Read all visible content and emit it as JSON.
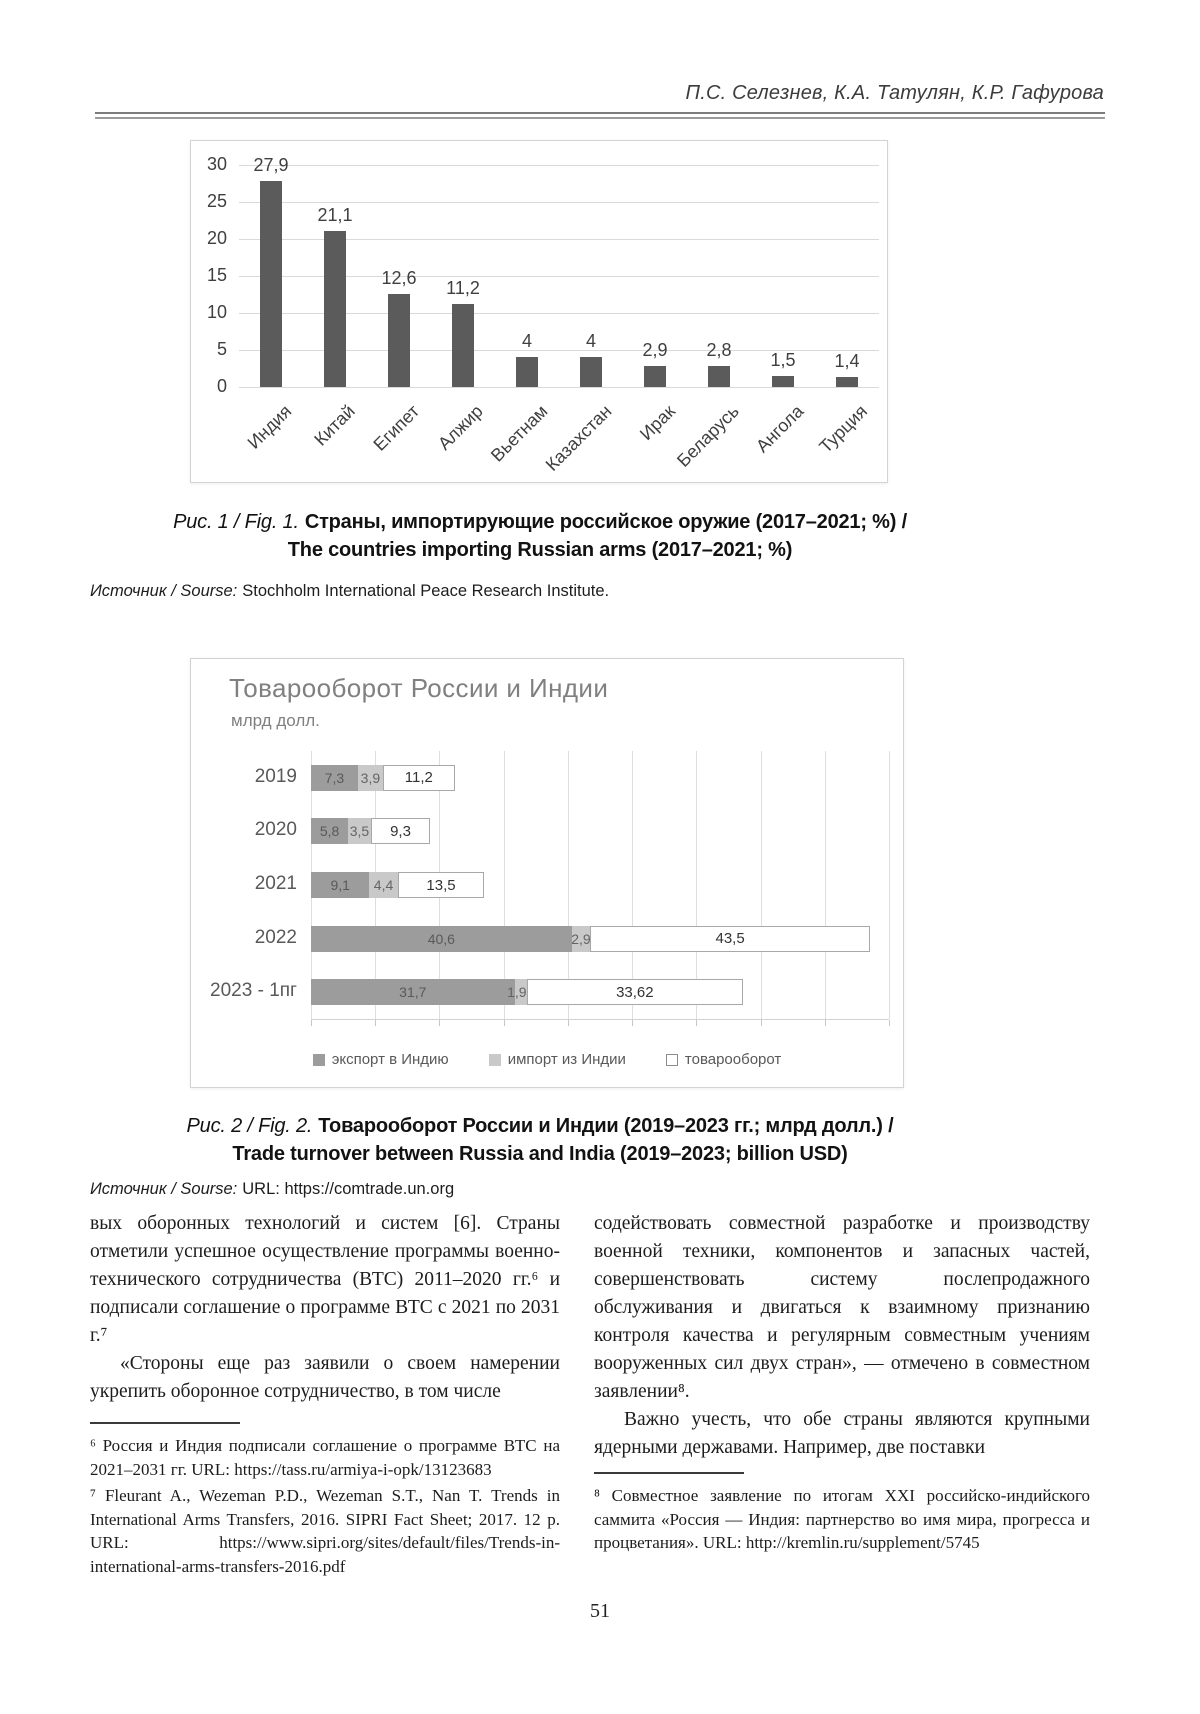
{
  "header": {
    "authors": "П.С. Селезнев, К.А. Татулян, К.Р. Гафурова"
  },
  "chart_data": [
    {
      "type": "bar",
      "title": "Страны, импортирующие российское оружие (2017–2021; %)",
      "categories": [
        "Индия",
        "Китай",
        "Египет",
        "Алжир",
        "Вьетнам",
        "Казахстан",
        "Ирак",
        "Беларусь",
        "Ангола",
        "Турция"
      ],
      "values": [
        27.9,
        21.1,
        12.6,
        11.2,
        4,
        4,
        2.9,
        2.8,
        1.5,
        1.4
      ],
      "value_labels": [
        "27,9",
        "21,1",
        "12,6",
        "11,2",
        "4",
        "4",
        "2,9",
        "2,8",
        "1,5",
        "1,4"
      ],
      "ylim": [
        0,
        30
      ],
      "yticks": [
        0,
        5,
        10,
        15,
        20,
        25,
        30
      ],
      "grid": true,
      "legend_position": "none",
      "bar_color": "#5b5b5b"
    },
    {
      "type": "bar-horizontal-stacked",
      "title": "Товарооборот России и Индии",
      "subtitle": "млрд долл.",
      "categories": [
        "2019",
        "2020",
        "2021",
        "2022",
        "2023 - 1пг"
      ],
      "series": [
        {
          "name": "экспорт в Индию",
          "color": "#9c9c9c",
          "values": [
            7.3,
            5.8,
            9.1,
            40.6,
            31.7
          ],
          "labels": [
            "7,3",
            "5,8",
            "9,1",
            "40,6",
            "31,7"
          ]
        },
        {
          "name": "импорт из Индии",
          "color": "#c9c9c9",
          "values": [
            3.9,
            3.5,
            4.4,
            2.9,
            1.92
          ],
          "labels": [
            "3,9",
            "3,5",
            "4,4",
            "2,9",
            "1,92"
          ]
        },
        {
          "name": "товарооборот",
          "color": "#ffffff",
          "values": [
            11.2,
            9.3,
            13.5,
            43.5,
            33.62
          ],
          "labels": [
            "11,2",
            "9,3",
            "13,5",
            "43,5",
            "33,62"
          ]
        }
      ],
      "xlim": [
        0,
        90
      ],
      "grid_step": 10,
      "grid": true,
      "legend_position": "bottom"
    }
  ],
  "figure1": {
    "caption_prefix": "Рис. 1 / Fig. 1.",
    "caption_line1": "Страны, импортирующие российское оружие (2017–2021; %) /",
    "caption_line2": "The countries importing Russian arms (2017–2021; %)",
    "source_label": "Источник / Sourse:",
    "source_text": "Stochholm International Peace Research Institute."
  },
  "figure2": {
    "caption_prefix": "Рис. 2 / Fig. 2.",
    "caption_line1": "Товарооборот России и Индии (2019–2023 гг.; млрд долл.) /",
    "caption_line2": "Trade turnover between Russia and India (2019–2023; billion USD)",
    "source_label": "Источник / Sourse:",
    "source_text": "URL: https://comtrade.un.org"
  },
  "body": {
    "left": {
      "paragraphs": [
        "вых оборонных технологий и систем [6]. Страны отметили успешное осуществление программы военно-технического сотрудничества (ВТС) 2011–2020 гг.⁶ и подписали соглашение о программе ВТС с 2021 по 2031 г.⁷",
        "«Стороны еще раз заявили о своем намерении укрепить оборонное сотрудничество, в том числе"
      ],
      "footnotes": [
        "⁶ Россия и Индия подписали соглашение о программе ВТС на 2021–2031 гг. URL: https://tass.ru/armiya-i-opk/13123683",
        "⁷ Fleurant A., Wezeman P.D., Wezeman S.T., Nan T. Trends in International Arms Transfers, 2016. SIPRI Fact Sheet; 2017. 12 p. URL: https://www.sipri.org/sites/default/files/Trends-in-international-arms-transfers-2016.pdf"
      ]
    },
    "right": {
      "paragraphs": [
        "содействовать совместной разработке и производству военной техники, компонентов и запасных частей, совершенствовать систему послепродажного обслуживания и двигаться к взаимному признанию контроля качества и регулярным совместным учениям вооруженных сил двух стран», — отмечено в совместном заявлении⁸.",
        "Важно учесть, что обе страны являются крупными ядерными державами. Например, две поставки"
      ],
      "footnotes": [
        "⁸ Совместное заявление по итогам XXI российско-индийского саммита «Россия — Индия: партнерство во имя мира, прогресса и процветания». URL: http://kremlin.ru/supplement/5745"
      ]
    }
  },
  "page_number": "51"
}
